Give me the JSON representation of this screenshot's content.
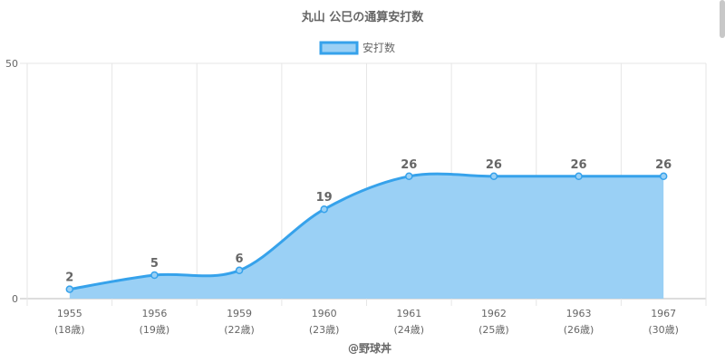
{
  "chart_data": {
    "type": "area",
    "title": "丸山 公巳の通算安打数",
    "legend_position": "top",
    "grid": true,
    "ylim": [
      0,
      50
    ],
    "y_ticks": [
      0,
      50
    ],
    "categories": [
      "1955",
      "1956",
      "1959",
      "1960",
      "1961",
      "1962",
      "1963",
      "1967"
    ],
    "category_sublabels": [
      "(18歳)",
      "(19歳)",
      "(22歳)",
      "(23歳)",
      "(24歳)",
      "(25歳)",
      "(26歳)",
      "(30歳)"
    ],
    "series": [
      {
        "name": "安打数",
        "values": [
          2,
          5,
          6,
          19,
          26,
          26,
          26,
          26
        ]
      }
    ],
    "source_label": "@野球丼",
    "colors": {
      "line": "#36a2eb",
      "fill": "#9ad0f5",
      "grid": "#e6e6e6",
      "axis": "#888888",
      "text": "#666666"
    }
  }
}
